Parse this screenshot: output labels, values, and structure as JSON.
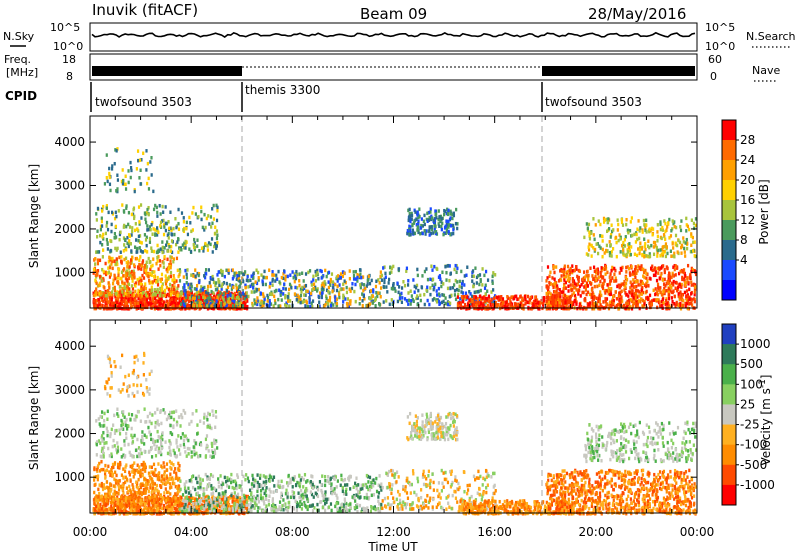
{
  "header": {
    "radar": "Inuvik (fitACF)",
    "beam": "Beam 09",
    "date": "28/May/2016"
  },
  "top_panels": {
    "nsky": {
      "label": "N.Sky",
      "left_ticks": [
        "10^5",
        "10^0"
      ],
      "right_ticks": [
        "10^5",
        "10^0"
      ],
      "right_label": "N.Search"
    },
    "freq": {
      "label_line1": "Freq.",
      "label_line2": "[MHz]",
      "left_ticks": [
        "18",
        "8"
      ],
      "right_ticks": [
        "60",
        "0"
      ],
      "right_label": "Nave"
    },
    "cpid": {
      "label": "CPID",
      "segments": [
        {
          "name": "twofsound 3503",
          "start_hour": 0,
          "end_hour": 6
        },
        {
          "name": "themis 3300",
          "start_hour": 6,
          "end_hour": 18
        },
        {
          "name": "twofsound 3503",
          "start_hour": 18,
          "end_hour": 24
        }
      ]
    }
  },
  "chart_data": [
    {
      "type": "heatmap",
      "quantity": "power",
      "ylabel": "Slant Range [km]",
      "xlim_hours": [
        0,
        24
      ],
      "ylim": [
        180,
        4600
      ],
      "yticks": [
        1000,
        2000,
        3000,
        4000
      ],
      "colorbar": {
        "label": "Power [dB]",
        "ticks": [
          "28",
          "24",
          "20",
          "16",
          "12",
          "8",
          "4"
        ],
        "colors": [
          "#ff0000",
          "#ff6a00",
          "#ff9f00",
          "#ffd000",
          "#a8c43c",
          "#4a9a5c",
          "#2a6a8c",
          "#1a4aff",
          "#0000ff"
        ]
      }
    },
    {
      "type": "heatmap",
      "quantity": "velocity",
      "ylabel": "Slant Range [km]",
      "xlabel": "Time UT",
      "xlim_hours": [
        0,
        24
      ],
      "ylim": [
        180,
        4600
      ],
      "yticks": [
        1000,
        2000,
        3000,
        4000
      ],
      "xticks": [
        "00:00",
        "04:00",
        "08:00",
        "12:00",
        "16:00",
        "20:00",
        "00:00"
      ],
      "colorbar": {
        "label": "Velocity [m s",
        "label_sup": "-1",
        "label_end": "]",
        "ticks": [
          "1000",
          "500",
          "100",
          "25",
          "-25",
          "-100",
          "-500",
          "-1000"
        ],
        "colors": [
          "#2040c0",
          "#2e7a5a",
          "#4ab04a",
          "#88d060",
          "#c8c8c0",
          "#ffb020",
          "#ff8c00",
          "#ff4a00",
          "#ff0000"
        ]
      }
    }
  ]
}
